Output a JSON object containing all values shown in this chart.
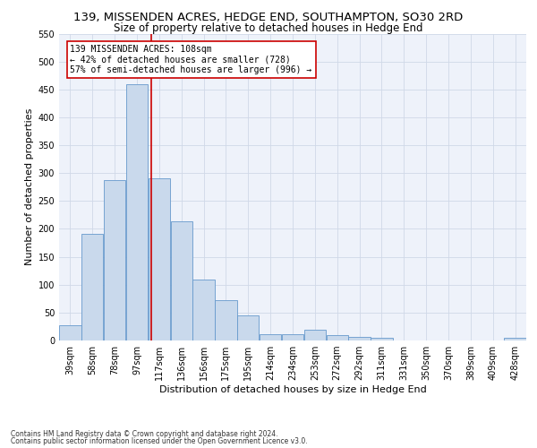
{
  "title": "139, MISSENDEN ACRES, HEDGE END, SOUTHAMPTON, SO30 2RD",
  "subtitle": "Size of property relative to detached houses in Hedge End",
  "xlabel": "Distribution of detached houses by size in Hedge End",
  "ylabel": "Number of detached properties",
  "footnote1": "Contains HM Land Registry data © Crown copyright and database right 2024.",
  "footnote2": "Contains public sector information licensed under the Open Government Licence v3.0.",
  "annotation_title": "139 MISSENDEN ACRES: 108sqm",
  "annotation_line1": "← 42% of detached houses are smaller (728)",
  "annotation_line2": "57% of semi-detached houses are larger (996) →",
  "bar_color": "#c9d9ec",
  "bar_edge_color": "#6699cc",
  "vline_color": "#cc0000",
  "vline_x": 108,
  "annotation_box_edge": "#cc0000",
  "categories": [
    "39sqm",
    "58sqm",
    "78sqm",
    "97sqm",
    "117sqm",
    "136sqm",
    "156sqm",
    "175sqm",
    "195sqm",
    "214sqm",
    "234sqm",
    "253sqm",
    "272sqm",
    "292sqm",
    "311sqm",
    "331sqm",
    "350sqm",
    "370sqm",
    "389sqm",
    "409sqm",
    "428sqm"
  ],
  "bin_edges": [
    29.5,
    48.5,
    67.5,
    86.5,
    105.5,
    124.5,
    143.5,
    162.5,
    181.5,
    200.5,
    219.5,
    238.5,
    257.5,
    276.5,
    295.5,
    314.5,
    333.5,
    352.5,
    371.5,
    390.5,
    409.5,
    428.5
  ],
  "values": [
    28,
    191,
    287,
    459,
    291,
    213,
    110,
    73,
    45,
    12,
    12,
    20,
    9,
    6,
    5,
    0,
    0,
    0,
    0,
    0,
    5
  ],
  "ylim": [
    0,
    550
  ],
  "yticks": [
    0,
    50,
    100,
    150,
    200,
    250,
    300,
    350,
    400,
    450,
    500,
    550
  ],
  "grid_color": "#d0d8e8",
  "bg_color": "#eef2fa",
  "title_fontsize": 9.5,
  "subtitle_fontsize": 8.5,
  "xlabel_fontsize": 8,
  "ylabel_fontsize": 8,
  "tick_fontsize": 7,
  "annotation_fontsize": 7,
  "footnote_fontsize": 5.5
}
